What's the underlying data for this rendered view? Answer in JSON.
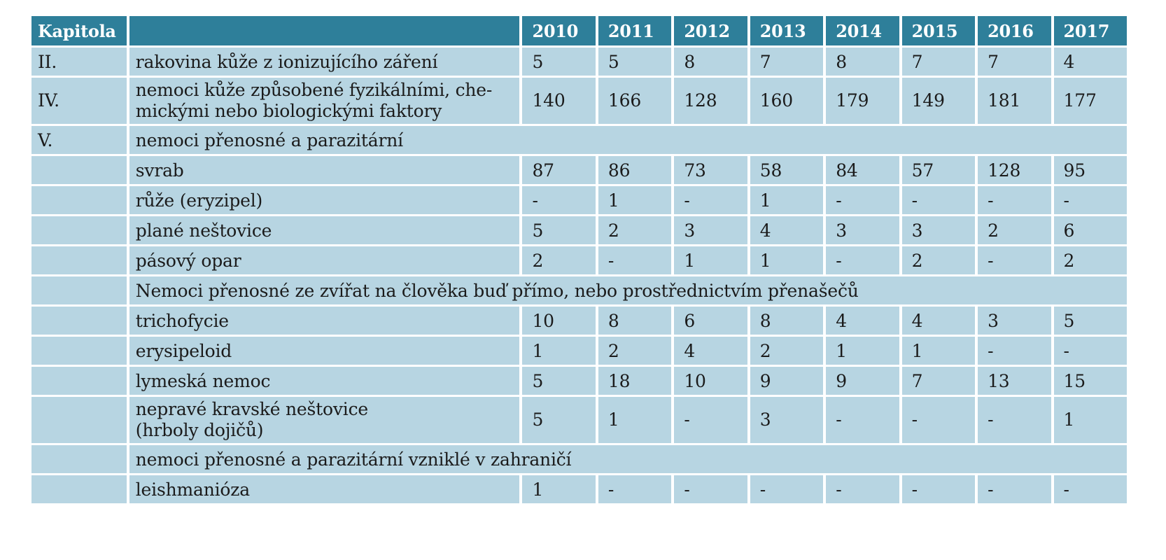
{
  "table": {
    "header": {
      "kapitola": "Kapitola",
      "years": [
        "2010",
        "2011",
        "2012",
        "2013",
        "2014",
        "2015",
        "2016",
        "2017"
      ]
    },
    "rows": [
      {
        "kapitola": "II.",
        "label": "rakovina kůže z ionizujícího záření",
        "values": [
          "5",
          "5",
          "8",
          "7",
          "8",
          "7",
          "7",
          "4"
        ]
      },
      {
        "kapitola": "IV.",
        "label": "nemoci kůže způsobené fyzikálními, chemickými nebo biologickými faktory",
        "label_lines": [
          "nemoci kůže způsobené fyzikálními, che-",
          "mickými nebo biologickými faktory"
        ],
        "values": [
          "140",
          "166",
          "128",
          "160",
          "179",
          "149",
          "181",
          "177"
        ]
      },
      {
        "kapitola": "V.",
        "label": "nemoci přenosné a parazitární",
        "section": true
      },
      {
        "kapitola": "",
        "label": "svrab",
        "values": [
          "87",
          "86",
          "73",
          "58",
          "84",
          "57",
          "128",
          "95"
        ]
      },
      {
        "kapitola": "",
        "label": "růže (eryzipel)",
        "values": [
          "-",
          "1",
          "-",
          "1",
          "-",
          "-",
          "-",
          "-"
        ]
      },
      {
        "kapitola": "",
        "label": "plané neštovice",
        "values": [
          "5",
          "2",
          "3",
          "4",
          "3",
          "3",
          "2",
          "6"
        ]
      },
      {
        "kapitola": "",
        "label": "pásový opar",
        "values": [
          "2",
          "-",
          "1",
          "1",
          "-",
          "2",
          "-",
          "2"
        ]
      },
      {
        "kapitola": "",
        "label": "Nemoci přenosné ze zvířat na člověka buď přímo, nebo prostřednictvím přenašečů",
        "section": true
      },
      {
        "kapitola": "",
        "label": "trichofycie",
        "values": [
          "10",
          "8",
          "6",
          "8",
          "4",
          "4",
          "3",
          "5"
        ]
      },
      {
        "kapitola": "",
        "label": "erysipeloid",
        "values": [
          "1",
          "2",
          "4",
          "2",
          "1",
          "1",
          "-",
          "-"
        ]
      },
      {
        "kapitola": "",
        "label": "lymeská nemoc",
        "values": [
          "5",
          "18",
          "10",
          "9",
          "9",
          "7",
          "13",
          "15"
        ]
      },
      {
        "kapitola": "",
        "label": "nepravé kravské neštovice (hrboly dojičů)",
        "label_lines": [
          "nepravé kravské neštovice",
          "(hrboly dojičů)"
        ],
        "values": [
          "5",
          "1",
          "-",
          "3",
          "-",
          "-",
          "-",
          "1"
        ]
      },
      {
        "kapitola": "",
        "label": "nemoci přenosné a parazitární vzniklé v zahraničí",
        "section": true
      },
      {
        "kapitola": "",
        "label": "leishmanióza",
        "values": [
          "1",
          "-",
          "-",
          "-",
          "-",
          "-",
          "-",
          "-"
        ]
      }
    ]
  },
  "colors": {
    "header_bg": "#2e7f9a",
    "cell_bg": "#b7d5e2",
    "header_text": "#ffffff",
    "cell_text": "#1b1b1b"
  }
}
